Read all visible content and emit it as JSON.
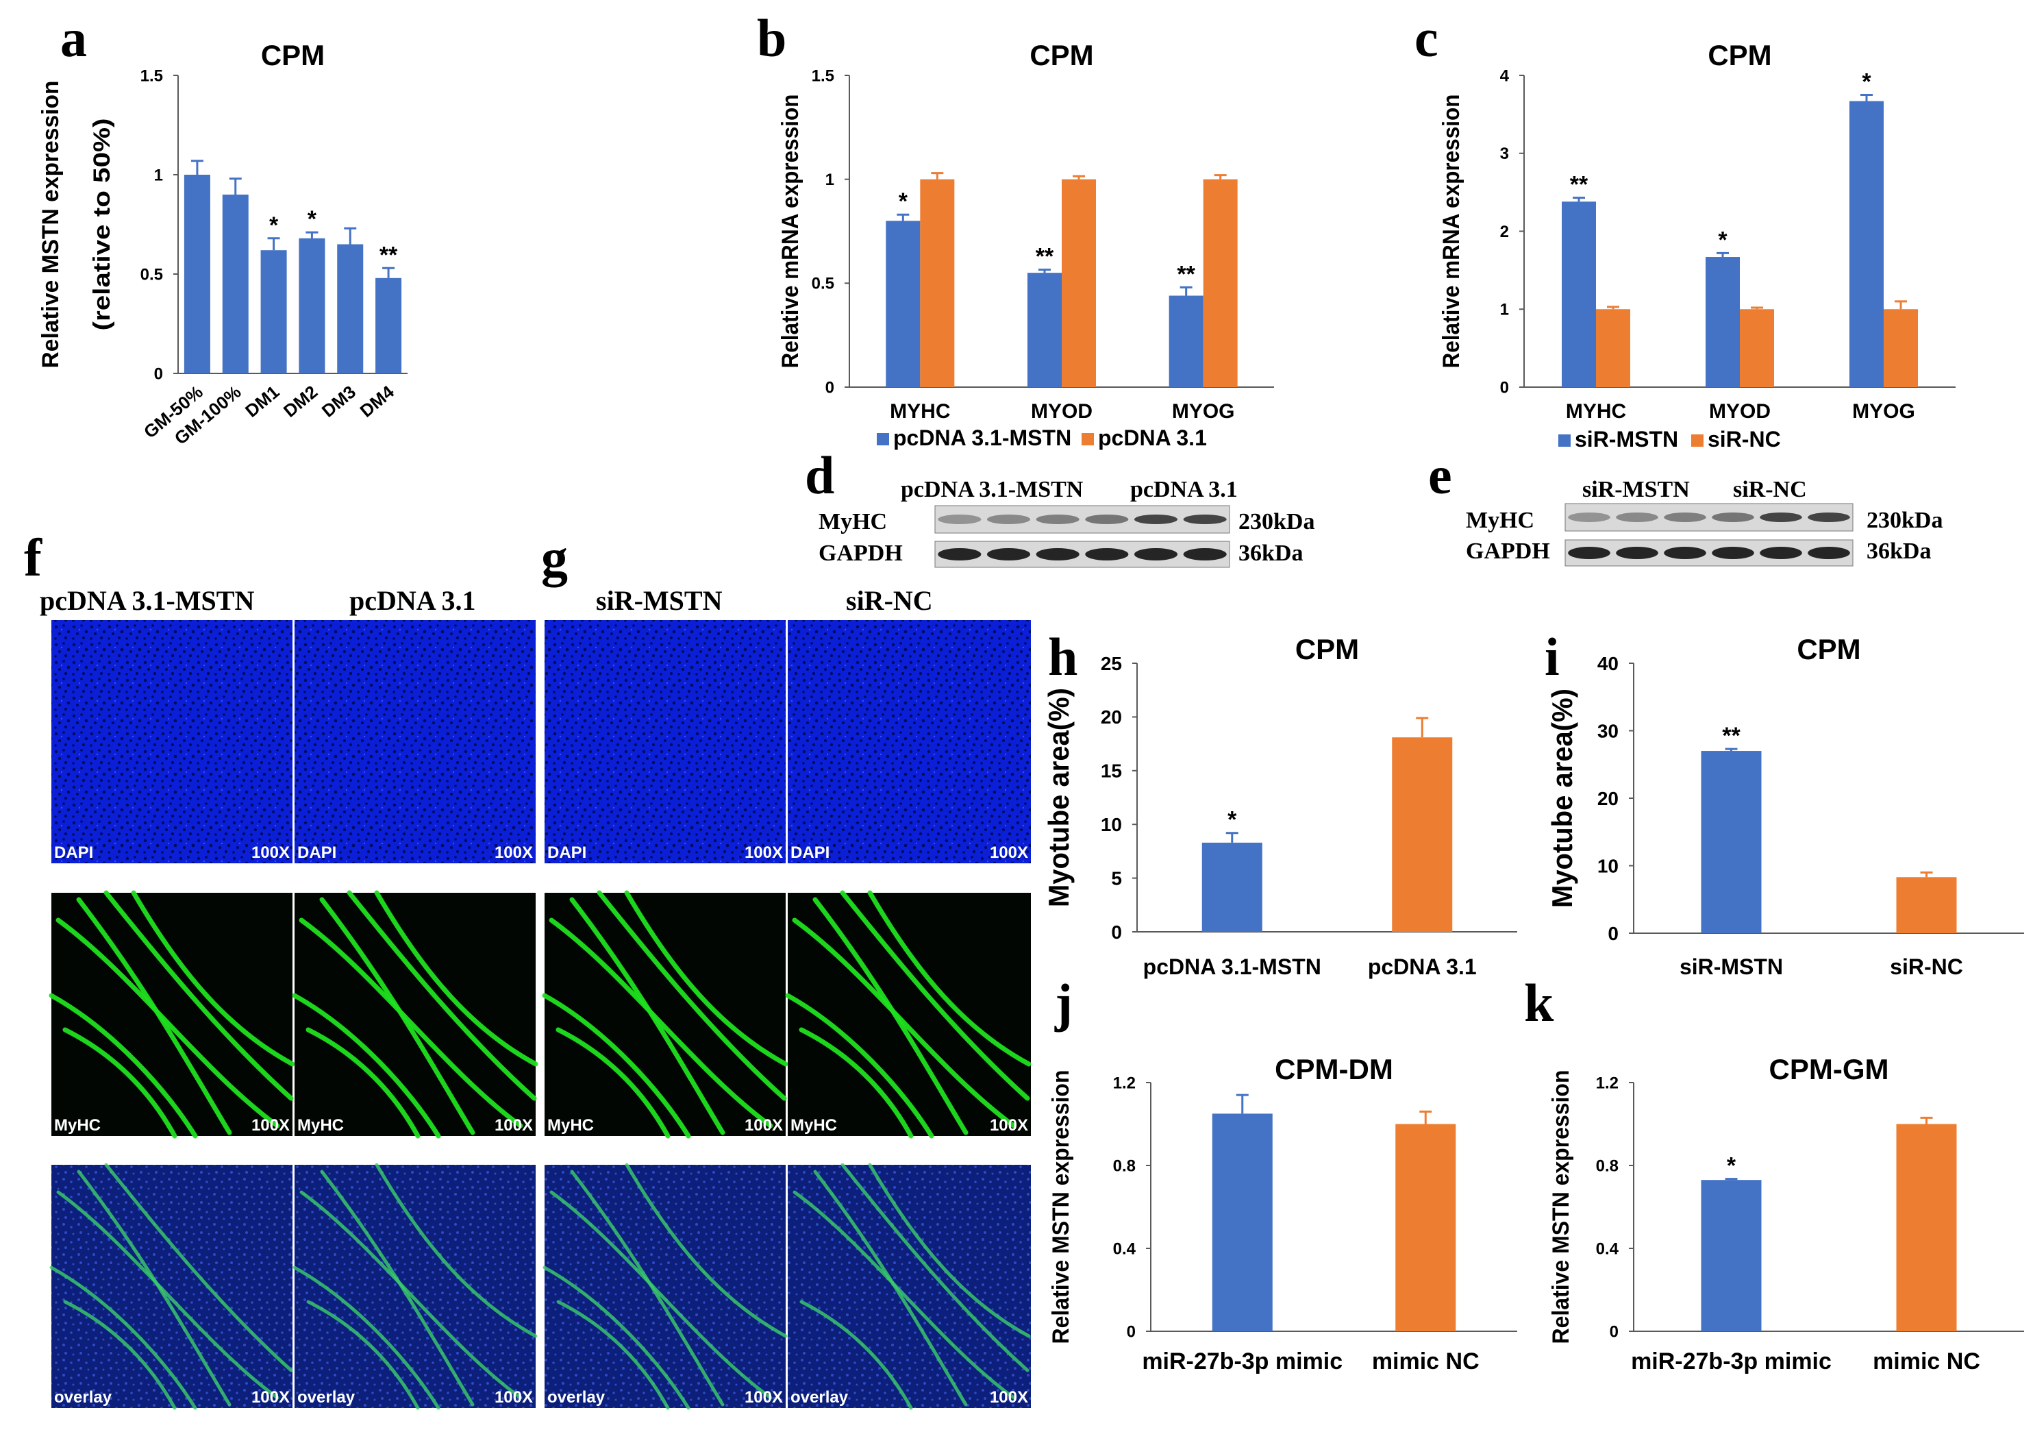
{
  "colors": {
    "blue": "#4472C4",
    "orange": "#ED7D31",
    "axis": "#595959",
    "dapi": "#0a1fd6",
    "myhc": "#19d319"
  },
  "chart_data": [
    {
      "id": "a",
      "type": "bar",
      "letter": "a",
      "title": "CPM",
      "ylabel": [
        "Relative MSTN expression",
        "(relative to 50%)"
      ],
      "ylim": [
        0,
        1.5
      ],
      "yticks": [
        0,
        0.5,
        1,
        1.5
      ],
      "ytick_labels": [
        "0",
        "0.5",
        "1",
        "1.5"
      ],
      "categories": [
        "GM-50%",
        "GM-100%",
        "DM1",
        "DM2",
        "DM3",
        "DM4"
      ],
      "rotate_xlabels": true,
      "series": [
        {
          "name": "",
          "color": "blue",
          "values": [
            1.0,
            0.9,
            0.62,
            0.68,
            0.65,
            0.48
          ],
          "errors": [
            0.07,
            0.08,
            0.06,
            0.03,
            0.08,
            0.05
          ],
          "sig": [
            "",
            "",
            "*",
            "*",
            "",
            "**"
          ]
        }
      ]
    },
    {
      "id": "b",
      "type": "bar",
      "letter": "b",
      "title": "CPM",
      "ylabel": [
        "Relative mRNA expression"
      ],
      "ylim": [
        0,
        1.5
      ],
      "yticks": [
        0,
        0.5,
        1,
        1.5
      ],
      "ytick_labels": [
        "0",
        "0.5",
        "1",
        "1.5"
      ],
      "categories": [
        "MYHC",
        "MYOD",
        "MYOG"
      ],
      "series": [
        {
          "name": "pcDNA 3.1-MSTN",
          "color": "blue",
          "values": [
            0.8,
            0.55,
            0.44
          ],
          "errors": [
            0.03,
            0.015,
            0.04
          ],
          "sig": [
            "*",
            "**",
            "**"
          ]
        },
        {
          "name": "pcDNA 3.1",
          "color": "orange",
          "values": [
            1.0,
            1.0,
            1.0
          ],
          "errors": [
            0.03,
            0.015,
            0.02
          ],
          "sig": [
            "",
            "",
            ""
          ]
        }
      ]
    },
    {
      "id": "c",
      "type": "bar",
      "letter": "c",
      "title": "CPM",
      "ylabel": [
        "Relative mRNA expression"
      ],
      "ylim": [
        0,
        4
      ],
      "yticks": [
        0,
        1,
        2,
        3,
        4
      ],
      "ytick_labels": [
        "0",
        "1",
        "2",
        "3",
        "4"
      ],
      "categories": [
        "MYHC",
        "MYOD",
        "MYOG"
      ],
      "series": [
        {
          "name": "siR-MSTN",
          "color": "blue",
          "values": [
            2.38,
            1.67,
            3.67
          ],
          "errors": [
            0.05,
            0.05,
            0.08
          ],
          "sig": [
            "**",
            "*",
            "*"
          ]
        },
        {
          "name": "siR-NC",
          "color": "orange",
          "values": [
            1.0,
            1.0,
            1.0
          ],
          "errors": [
            0.03,
            0.02,
            0.1
          ],
          "sig": [
            "",
            "",
            ""
          ]
        }
      ]
    },
    {
      "id": "h",
      "type": "bar",
      "letter": "h",
      "title": "CPM",
      "ylabel": [
        "Myotube area(%)"
      ],
      "ylim": [
        0,
        25
      ],
      "yticks": [
        0,
        5,
        10,
        15,
        20,
        25
      ],
      "ytick_labels": [
        "0",
        "5",
        "10",
        "15",
        "20",
        "25"
      ],
      "categories": [
        "pcDNA 3.1-MSTN",
        "pcDNA 3.1"
      ],
      "series": [
        {
          "name": "",
          "color": "blue",
          "values": [
            8.3,
            18.1
          ],
          "errors": [
            0.9,
            1.8
          ],
          "sig": [
            "*",
            ""
          ]
        }
      ],
      "bar_colors": [
        "blue",
        "orange"
      ]
    },
    {
      "id": "i",
      "type": "bar",
      "letter": "i",
      "title": "CPM",
      "ylabel": [
        "Myotube area(%)"
      ],
      "ylim": [
        0,
        40
      ],
      "yticks": [
        0,
        10,
        20,
        30,
        40
      ],
      "ytick_labels": [
        "0",
        "10",
        "20",
        "30",
        "40"
      ],
      "categories": [
        "siR-MSTN",
        "siR-NC"
      ],
      "series": [
        {
          "name": "",
          "color": "blue",
          "values": [
            27.0,
            8.3
          ],
          "errors": [
            0.3,
            0.7
          ],
          "sig": [
            "**",
            ""
          ]
        }
      ],
      "bar_colors": [
        "blue",
        "orange"
      ]
    },
    {
      "id": "j",
      "type": "bar",
      "letter": "j",
      "title": "CPM-DM",
      "ylabel": [
        "Relative MSTN expression"
      ],
      "ylim": [
        0,
        1.2
      ],
      "yticks": [
        0,
        0.4,
        0.8,
        1.2
      ],
      "ytick_labels": [
        "0",
        "0.4",
        "0.8",
        "1.2"
      ],
      "categories": [
        "miR-27b-3p mimic",
        "mimic NC"
      ],
      "series": [
        {
          "name": "",
          "color": "blue",
          "values": [
            1.05,
            1.0
          ],
          "errors": [
            0.09,
            0.06
          ],
          "sig": [
            "",
            ""
          ]
        }
      ],
      "bar_colors": [
        "blue",
        "orange"
      ]
    },
    {
      "id": "k",
      "type": "bar",
      "letter": "k",
      "title": "CPM-GM",
      "ylabel": [
        "Relative MSTN expression"
      ],
      "ylim": [
        0,
        1.2
      ],
      "yticks": [
        0,
        0.4,
        0.8,
        1.2
      ],
      "ytick_labels": [
        "0",
        "0.4",
        "0.8",
        "1.2"
      ],
      "categories": [
        "miR-27b-3p mimic",
        "mimic NC"
      ],
      "series": [
        {
          "name": "",
          "color": "blue",
          "values": [
            0.73,
            1.0
          ],
          "errors": [
            0.005,
            0.03
          ],
          "sig": [
            "*",
            ""
          ]
        }
      ],
      "bar_colors": [
        "blue",
        "orange"
      ]
    }
  ],
  "blots": [
    {
      "letter": "d",
      "header": [
        "pcDNA 3.1-MSTN",
        "pcDNA 3.1"
      ],
      "rows": [
        "MyHC",
        "GAPDH"
      ],
      "sizes": [
        "230kDa",
        "36kDa"
      ]
    },
    {
      "letter": "e",
      "header": [
        "siR-MSTN",
        "siR-NC"
      ],
      "rows": [
        "MyHC",
        "GAPDH"
      ],
      "sizes": [
        "230kDa",
        "36kDa"
      ]
    }
  ],
  "micrographs": [
    {
      "letter": "f",
      "columns": [
        "pcDNA 3.1-MSTN",
        "pcDNA 3.1"
      ]
    },
    {
      "letter": "g",
      "columns": [
        "siR-MSTN",
        "siR-NC"
      ]
    }
  ],
  "stain_labels": [
    "DAPI",
    "MyHC",
    "overlay"
  ],
  "magnification": "100X"
}
